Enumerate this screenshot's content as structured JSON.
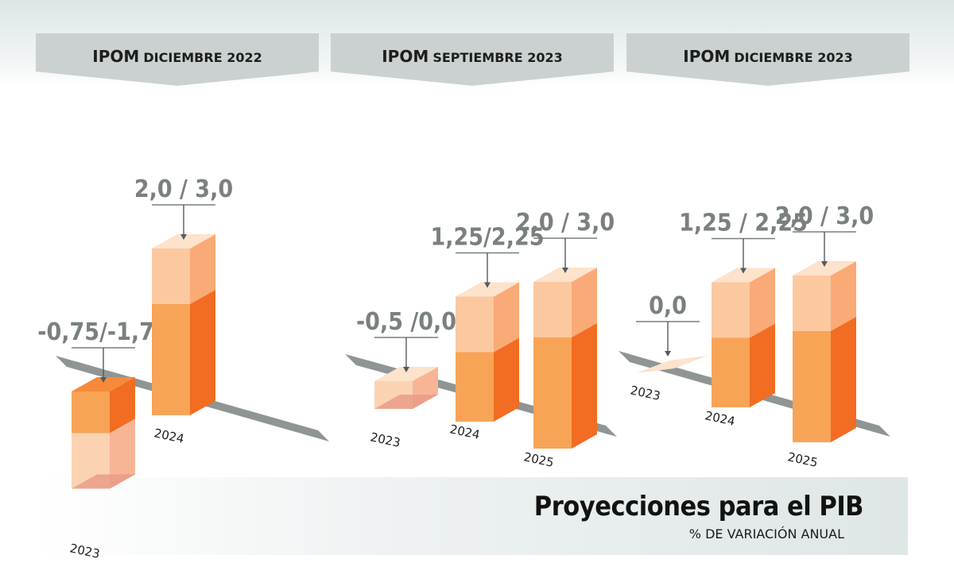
{
  "chart_data": {
    "type": "bar",
    "title": "Proyecciones para el PIB",
    "subtitle": "% DE VARIACIÓN ANUAL",
    "panels": [
      {
        "name_prefix": "IPOM",
        "name_rest": "DICIEMBRE 2022",
        "bars": [
          {
            "year": "2023",
            "low": -1.75,
            "high": -0.75,
            "label": "-0,75/-1,75"
          },
          {
            "year": "2024",
            "low": 2.0,
            "high": 3.0,
            "label": "2,0 / 3,0"
          }
        ]
      },
      {
        "name_prefix": "IPOM",
        "name_rest": "SEPTIEMBRE 2023",
        "bars": [
          {
            "year": "2023",
            "low": -0.5,
            "high": 0.0,
            "label": "-0,5 /0,0"
          },
          {
            "year": "2024",
            "low": 1.25,
            "high": 2.25,
            "label": "1,25/2,25"
          },
          {
            "year": "2025",
            "low": 2.0,
            "high": 3.0,
            "label": "2,0 / 3,0"
          }
        ]
      },
      {
        "name_prefix": "IPOM",
        "name_rest": "DICIEMBRE 2023",
        "bars": [
          {
            "year": "2023",
            "low": 0.0,
            "high": 0.0,
            "label": "0,0"
          },
          {
            "year": "2024",
            "low": 1.25,
            "high": 2.25,
            "label": "1,25 / 2,25"
          },
          {
            "year": "2025",
            "low": 2.0,
            "high": 3.0,
            "label": "2,0 / 3,0"
          }
        ]
      }
    ],
    "colors": {
      "range_front": "#fcc8a0",
      "range_side": "#f9aa76",
      "range_top": "#fde2cc",
      "solid_front": "#f8a456",
      "solid_side": "#f26c21",
      "solid_top": "#f7893a",
      "neg_range_front": "#fbd3b3",
      "neg_range_side": "#f7b596",
      "base_strip": "#8f9595",
      "value_text": "#7a7f7f"
    }
  }
}
